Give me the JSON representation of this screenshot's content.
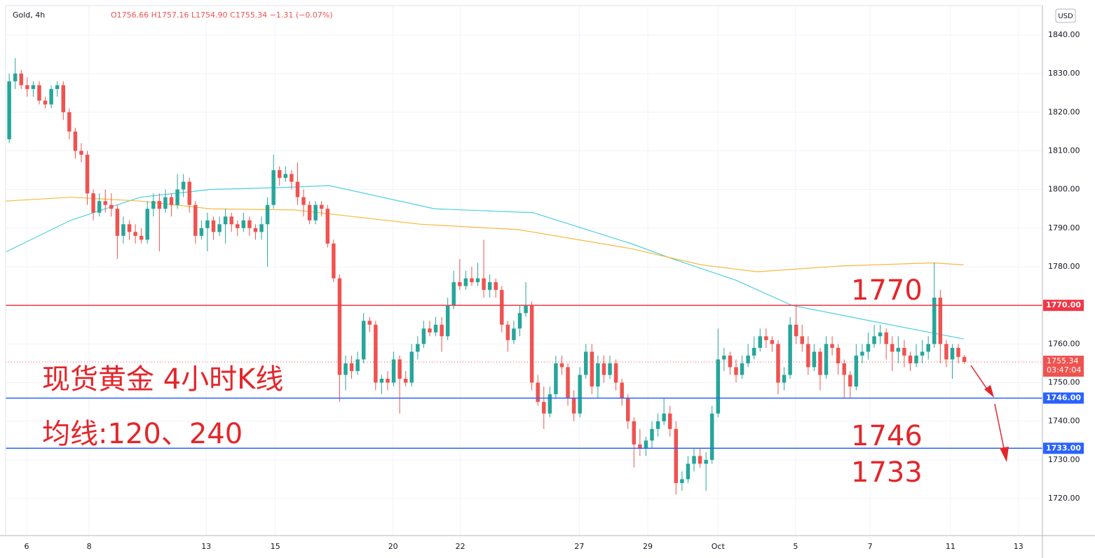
{
  "chart_data": {
    "type": "candlestick",
    "symbol": "Gold, 4h",
    "ohlc_text": "O1756.66 H1757.16 L1754.90 C1755.34 −1.31 (−0.07%)",
    "currency": "USD",
    "countdown": "03:47:04",
    "up_color": "#26a69a",
    "down_color": "#ef5350",
    "ylim": [
      1710.4,
      1847.6
    ],
    "yticks": [
      {
        "value": 1720,
        "label": "1720.00"
      },
      {
        "value": 1730,
        "label": "1730.00"
      },
      {
        "value": 1740,
        "label": "1740.00"
      },
      {
        "value": 1750,
        "label": "1750.00"
      },
      {
        "value": 1760,
        "label": "1760.00"
      },
      {
        "value": 1770,
        "label": "1770.00"
      },
      {
        "value": 1780,
        "label": "1780.00"
      },
      {
        "value": 1790,
        "label": "1790.00"
      },
      {
        "value": 1800,
        "label": "1800.00"
      },
      {
        "value": 1810,
        "label": "1810.00"
      },
      {
        "value": 1820,
        "label": "1820.00"
      },
      {
        "value": 1830,
        "label": "1830.00"
      },
      {
        "value": 1840,
        "label": "1840.00"
      }
    ],
    "xlim": [
      -0.6,
      172
    ],
    "xticks": [
      {
        "value": 2.9,
        "label": "6"
      },
      {
        "value": 13.3,
        "label": "8"
      },
      {
        "value": 32.8,
        "label": "13"
      },
      {
        "value": 44.3,
        "label": "15"
      },
      {
        "value": 63.9,
        "label": "20"
      },
      {
        "value": 75.1,
        "label": "22"
      },
      {
        "value": 94.9,
        "label": "27"
      },
      {
        "value": 106.3,
        "label": "29"
      },
      {
        "value": 118,
        "label": "Oct"
      },
      {
        "value": 130.9,
        "label": "5"
      },
      {
        "value": 143.3,
        "label": "7"
      },
      {
        "value": 156.7,
        "label": "11"
      },
      {
        "value": 168,
        "label": "13"
      }
    ],
    "grid": true,
    "ohlc": [
      [
        1813,
        1830,
        1812,
        1828
      ],
      [
        1828,
        1834,
        1826,
        1830
      ],
      [
        1830,
        1831,
        1826,
        1827
      ],
      [
        1827,
        1829,
        1824,
        1826
      ],
      [
        1826,
        1828,
        1824,
        1827
      ],
      [
        1827,
        1828,
        1822,
        1823
      ],
      [
        1823,
        1824,
        1821,
        1822
      ],
      [
        1822,
        1827,
        1821,
        1826
      ],
      [
        1826,
        1828,
        1824,
        1827
      ],
      [
        1827,
        1828,
        1818,
        1820
      ],
      [
        1820,
        1821,
        1813,
        1815
      ],
      [
        1815,
        1816,
        1808,
        1810
      ],
      [
        1810,
        1812,
        1807,
        1809
      ],
      [
        1809,
        1810,
        1796,
        1799
      ],
      [
        1799,
        1800,
        1792,
        1794
      ],
      [
        1794,
        1799,
        1793,
        1797
      ],
      [
        1797,
        1800,
        1794,
        1796
      ],
      [
        1796,
        1799,
        1793,
        1795
      ],
      [
        1795,
        1796,
        1782,
        1788
      ],
      [
        1788,
        1793,
        1786,
        1791
      ],
      [
        1791,
        1792,
        1787,
        1789
      ],
      [
        1789,
        1791,
        1786,
        1788
      ],
      [
        1788,
        1790,
        1786,
        1787
      ],
      [
        1787,
        1797,
        1786,
        1795
      ],
      [
        1795,
        1799,
        1793,
        1797
      ],
      [
        1797,
        1799,
        1784,
        1795
      ],
      [
        1795,
        1800,
        1794,
        1798
      ],
      [
        1798,
        1799,
        1793,
        1796
      ],
      [
        1796,
        1804,
        1795,
        1800
      ],
      [
        1800,
        1804,
        1798,
        1802
      ],
      [
        1802,
        1803,
        1794,
        1796
      ],
      [
        1796,
        1797,
        1786,
        1788
      ],
      [
        1788,
        1792,
        1787,
        1790
      ],
      [
        1790,
        1794,
        1784,
        1792
      ],
      [
        1792,
        1793,
        1787,
        1789
      ],
      [
        1789,
        1793,
        1788,
        1791
      ],
      [
        1791,
        1795,
        1786,
        1793
      ],
      [
        1793,
        1794,
        1789,
        1791
      ],
      [
        1791,
        1792,
        1788,
        1790
      ],
      [
        1790,
        1794,
        1789,
        1792
      ],
      [
        1792,
        1793,
        1788,
        1790
      ],
      [
        1790,
        1791,
        1787,
        1789
      ],
      [
        1789,
        1793,
        1787,
        1791
      ],
      [
        1791,
        1798,
        1780,
        1796
      ],
      [
        1796,
        1809,
        1795,
        1805
      ],
      [
        1805,
        1806,
        1801,
        1803
      ],
      [
        1803,
        1806,
        1802,
        1804
      ],
      [
        1804,
        1805,
        1800,
        1802
      ],
      [
        1802,
        1807,
        1796,
        1798
      ],
      [
        1798,
        1800,
        1793,
        1796
      ],
      [
        1796,
        1797,
        1791,
        1792
      ],
      [
        1792,
        1797,
        1791,
        1796
      ],
      [
        1796,
        1797,
        1793,
        1795
      ],
      [
        1795,
        1796,
        1785,
        1786
      ],
      [
        1786,
        1787,
        1776,
        1777
      ],
      [
        1777,
        1778,
        1745,
        1752
      ],
      [
        1752,
        1757,
        1748,
        1755
      ],
      [
        1755,
        1757,
        1751,
        1753
      ],
      [
        1753,
        1758,
        1752,
        1756
      ],
      [
        1756,
        1768,
        1755,
        1766
      ],
      [
        1766,
        1767,
        1763,
        1765
      ],
      [
        1765,
        1766,
        1748,
        1750
      ],
      [
        1750,
        1752,
        1747,
        1751
      ],
      [
        1751,
        1753,
        1748,
        1750
      ],
      [
        1750,
        1758,
        1749,
        1756
      ],
      [
        1756,
        1757,
        1742,
        1751
      ],
      [
        1751,
        1753,
        1749,
        1750
      ],
      [
        1750,
        1760,
        1749,
        1758
      ],
      [
        1758,
        1762,
        1756,
        1760
      ],
      [
        1760,
        1766,
        1759,
        1764
      ],
      [
        1764,
        1766,
        1762,
        1763
      ],
      [
        1763,
        1767,
        1762,
        1765
      ],
      [
        1765,
        1767,
        1758,
        1762
      ],
      [
        1762,
        1772,
        1761,
        1770
      ],
      [
        1770,
        1779,
        1769,
        1776
      ],
      [
        1776,
        1782,
        1774,
        1775
      ],
      [
        1775,
        1779,
        1774,
        1777
      ],
      [
        1777,
        1780,
        1775,
        1776
      ],
      [
        1776,
        1781,
        1775,
        1777
      ],
      [
        1777,
        1787,
        1772,
        1774
      ],
      [
        1774,
        1778,
        1772,
        1776
      ],
      [
        1776,
        1777,
        1772,
        1774
      ],
      [
        1774,
        1775,
        1763,
        1765
      ],
      [
        1765,
        1766,
        1758,
        1761
      ],
      [
        1761,
        1766,
        1760,
        1764
      ],
      [
        1764,
        1770,
        1762,
        1768
      ],
      [
        1768,
        1776,
        1767,
        1770
      ],
      [
        1770,
        1771,
        1748,
        1750
      ],
      [
        1750,
        1752,
        1744,
        1745
      ],
      [
        1745,
        1749,
        1738,
        1742
      ],
      [
        1742,
        1749,
        1741,
        1747
      ],
      [
        1747,
        1757,
        1746,
        1755
      ],
      [
        1755,
        1757,
        1752,
        1754
      ],
      [
        1754,
        1755,
        1744,
        1746
      ],
      [
        1746,
        1748,
        1740,
        1742
      ],
      [
        1742,
        1754,
        1741,
        1752
      ],
      [
        1752,
        1760,
        1751,
        1758
      ],
      [
        1758,
        1760,
        1747,
        1749
      ],
      [
        1749,
        1757,
        1746,
        1755
      ],
      [
        1755,
        1757,
        1750,
        1752
      ],
      [
        1752,
        1757,
        1751,
        1755
      ],
      [
        1755,
        1756,
        1748,
        1750
      ],
      [
        1750,
        1751,
        1744,
        1746
      ],
      [
        1746,
        1747,
        1738,
        1740
      ],
      [
        1740,
        1741,
        1728,
        1734
      ],
      [
        1734,
        1738,
        1731,
        1733
      ],
      [
        1733,
        1736,
        1731,
        1735
      ],
      [
        1735,
        1740,
        1733,
        1738
      ],
      [
        1738,
        1742,
        1736,
        1740
      ],
      [
        1740,
        1746,
        1739,
        1742
      ],
      [
        1742,
        1744,
        1736,
        1738
      ],
      [
        1738,
        1740,
        1721,
        1724
      ],
      [
        1724,
        1727,
        1722,
        1725
      ],
      [
        1725,
        1731,
        1724,
        1729
      ],
      [
        1729,
        1733,
        1727,
        1731
      ],
      [
        1731,
        1733,
        1728,
        1729
      ],
      [
        1729,
        1732,
        1722,
        1730
      ],
      [
        1730,
        1744,
        1729,
        1742
      ],
      [
        1742,
        1764,
        1741,
        1756
      ],
      [
        1756,
        1759,
        1753,
        1757
      ],
      [
        1757,
        1758,
        1752,
        1754
      ],
      [
        1754,
        1756,
        1750,
        1752
      ],
      [
        1752,
        1757,
        1751,
        1755
      ],
      [
        1755,
        1760,
        1754,
        1757
      ],
      [
        1757,
        1762,
        1756,
        1759
      ],
      [
        1759,
        1764,
        1758,
        1762
      ],
      [
        1762,
        1764,
        1759,
        1761
      ],
      [
        1761,
        1762,
        1758,
        1760
      ],
      [
        1760,
        1761,
        1747,
        1750
      ],
      [
        1750,
        1754,
        1748,
        1752
      ],
      [
        1752,
        1767,
        1751,
        1765
      ],
      [
        1765,
        1770,
        1760,
        1762
      ],
      [
        1762,
        1765,
        1758,
        1760
      ],
      [
        1760,
        1762,
        1752,
        1754
      ],
      [
        1754,
        1760,
        1753,
        1758
      ],
      [
        1758,
        1759,
        1748,
        1752
      ],
      [
        1752,
        1762,
        1751,
        1760
      ],
      [
        1760,
        1762,
        1757,
        1759
      ],
      [
        1759,
        1760,
        1752,
        1755
      ],
      [
        1755,
        1756,
        1746,
        1752
      ],
      [
        1752,
        1753,
        1746,
        1749
      ],
      [
        1749,
        1760,
        1748,
        1757
      ],
      [
        1757,
        1760,
        1755,
        1758
      ],
      [
        1758,
        1763,
        1756,
        1760
      ],
      [
        1760,
        1765,
        1759,
        1762
      ],
      [
        1762,
        1765,
        1760,
        1763
      ],
      [
        1763,
        1764,
        1756,
        1760
      ],
      [
        1760,
        1762,
        1753,
        1758
      ],
      [
        1758,
        1762,
        1755,
        1759
      ],
      [
        1759,
        1761,
        1754,
        1757
      ],
      [
        1757,
        1758,
        1753,
        1755
      ],
      [
        1755,
        1760,
        1754,
        1757
      ],
      [
        1757,
        1761,
        1755,
        1758
      ],
      [
        1758,
        1762,
        1756,
        1760
      ],
      [
        1760,
        1781,
        1759,
        1772
      ],
      [
        1772,
        1774,
        1755,
        1760
      ],
      [
        1760,
        1761,
        1754,
        1756
      ],
      [
        1756,
        1760,
        1751,
        1759
      ],
      [
        1759,
        1760,
        1755,
        1756.65
      ],
      [
        1756.66,
        1757.16,
        1754.9,
        1755.34
      ]
    ],
    "series": [
      {
        "name": "MA120",
        "color": "#4dd0e1",
        "x": [
          -0.6,
          10.2,
          21.8,
          33.5,
          45.2,
          53.3,
          70.8,
          87.2,
          103.5,
          110.5,
          121,
          130.3,
          144.3,
          158.9
        ],
        "values": [
          1783.8,
          1792,
          1798,
          1800,
          1800.5,
          1801,
          1795,
          1794,
          1786,
          1782,
          1776.5,
          1770,
          1765.7,
          1761.3
        ]
      },
      {
        "name": "MA240",
        "color": "#f5b940",
        "x": [
          -0.6,
          10.2,
          21.8,
          33.5,
          47.5,
          68.5,
          84.8,
          103.5,
          115.2,
          124.5,
          138.5,
          153.7,
          158.9
        ],
        "values": [
          1797,
          1798,
          1797,
          1795,
          1794.7,
          1791,
          1789.6,
          1784.7,
          1780.5,
          1778.7,
          1780.2,
          1781,
          1780.5
        ]
      }
    ],
    "hlines": [
      {
        "value": 1770,
        "label": "1770.00",
        "color": "#f23645"
      },
      {
        "value": 1746,
        "label": "1746.00",
        "color": "#2962ff"
      },
      {
        "value": 1733,
        "label": "1733.00",
        "color": "#2962ff"
      }
    ],
    "annotations": [
      "现货黄金 4小时K线",
      "均线:120、240",
      "1770",
      "1746",
      "1733"
    ]
  }
}
